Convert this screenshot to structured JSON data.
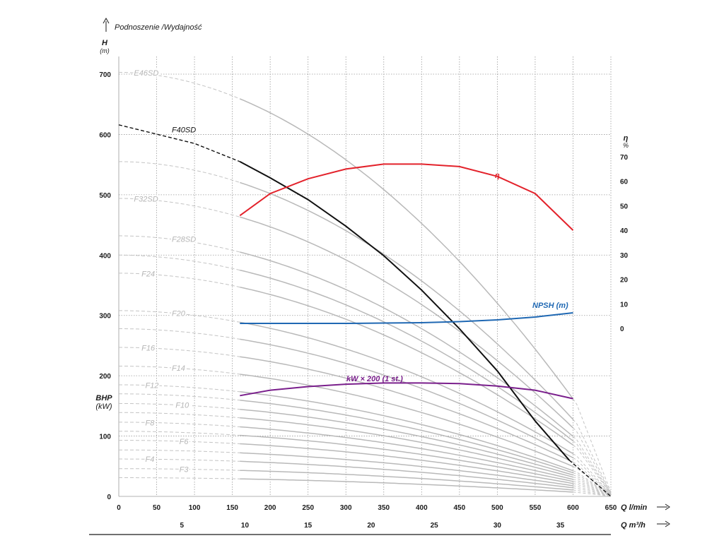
{
  "chart_data": {
    "type": "line",
    "title": "Podnoszenie /Wydajność",
    "y_left": {
      "label": "H",
      "unit": "(m)",
      "ticks": [
        "0",
        "100",
        "200",
        "300",
        "400",
        "500",
        "600",
        "700"
      ],
      "ylim": [
        0,
        720
      ]
    },
    "y_left_secondary": {
      "label": "BHP",
      "unit": "(kW)"
    },
    "y_right": {
      "label": "η",
      "unit": "%",
      "ticks": [
        "0",
        "10",
        "20",
        "30",
        "40",
        "50",
        "60",
        "70"
      ]
    },
    "x_primary": {
      "label": "Q l/min",
      "ticks": [
        "0",
        "50",
        "100",
        "150",
        "200",
        "250",
        "300",
        "350",
        "400",
        "450",
        "500",
        "550",
        "600",
        "650"
      ],
      "xlim": [
        0,
        650
      ]
    },
    "x_secondary": {
      "label": "Q m³/h",
      "ticks": [
        "5",
        "10",
        "15",
        "20",
        "25",
        "30",
        "35"
      ]
    },
    "grid": true,
    "pump_curves": [
      {
        "name": "E46SD",
        "shutoff_head": 703
      },
      {
        "name": "F40SD",
        "shutoff_head": 616,
        "highlight": true
      },
      {
        "name": "F32SD",
        "shutoff_head": 494
      },
      {
        "name": "F28SD",
        "shutoff_head": 432
      },
      {
        "name": "F24",
        "shutoff_head": 370
      },
      {
        "name": "F20",
        "shutoff_head": 308
      },
      {
        "name": "F16",
        "shutoff_head": 247
      },
      {
        "name": "F14",
        "shutoff_head": 216
      },
      {
        "name": "F12",
        "shutoff_head": 185
      },
      {
        "name": "F10",
        "shutoff_head": 154
      },
      {
        "name": "F8",
        "shutoff_head": 123
      },
      {
        "name": "F6",
        "shutoff_head": 93
      },
      {
        "name": "F4",
        "shutoff_head": 62
      },
      {
        "name": "F3",
        "shutoff_head": 46
      }
    ],
    "extra_unlabeled_curve_heads": [
      555,
      400,
      278,
      170,
      139,
      108,
      77,
      31
    ],
    "series": [
      {
        "name": "F40SD",
        "color": "#111111",
        "x": [
          0,
          100,
          160,
          200,
          250,
          300,
          350,
          400,
          450,
          500,
          550,
          595,
          650
        ],
        "y": [
          616,
          585,
          555,
          528,
          492,
          448,
          399,
          342,
          278,
          208,
          125,
          60,
          0
        ]
      },
      {
        "name": "η",
        "color": "#e3222b",
        "x": [
          160,
          200,
          250,
          300,
          350,
          400,
          450,
          500,
          550,
          600
        ],
        "y": [
          46,
          55,
          61,
          65,
          67,
          67,
          66,
          62,
          55,
          40
        ]
      },
      {
        "name": "NPSH (m)",
        "color": "#1f68b3",
        "x": [
          160,
          200,
          250,
          300,
          350,
          400,
          450,
          500,
          550,
          600
        ],
        "y": [
          2,
          2,
          2,
          2,
          2.1,
          2.2,
          2.5,
          3,
          3.8,
          5
        ]
      },
      {
        "name": "kW × 200 (1 st.)",
        "color": "#7a1f8c",
        "x": [
          160,
          200,
          250,
          300,
          350,
          400,
          450,
          500,
          550,
          600
        ],
        "y": [
          167,
          176,
          182,
          186,
          188,
          188,
          187,
          183,
          176,
          162
        ]
      }
    ]
  }
}
